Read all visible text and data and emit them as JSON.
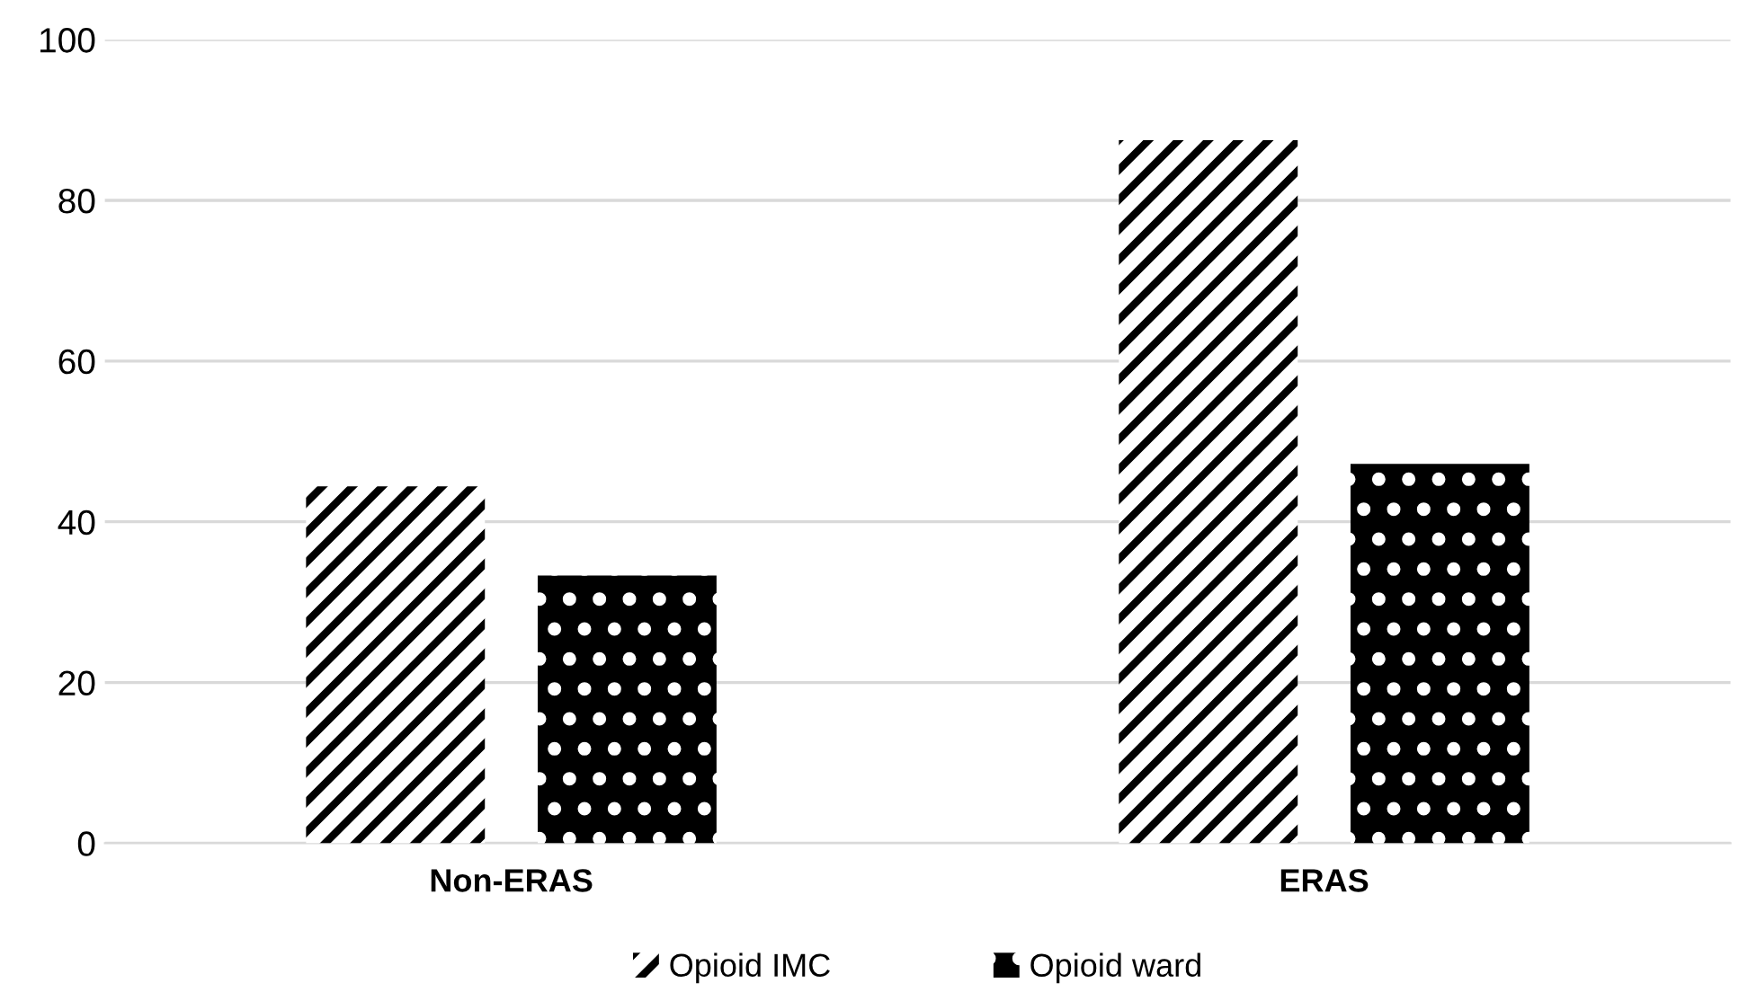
{
  "chart_data": {
    "type": "bar",
    "categories": [
      "Non-ERAS",
      "ERAS"
    ],
    "series": [
      {
        "name": "Opioid IMC",
        "color": "#ffffff",
        "values": [
          44.4,
          87.5
        ]
      },
      {
        "name": "Opioid ward",
        "color": "#000000",
        "values": [
          33.3,
          47.2
        ]
      }
    ],
    "ylim": [
      0,
      100
    ],
    "yticks": [
      0,
      20,
      40,
      60,
      80,
      100
    ],
    "grid": "y",
    "legend": "bottom"
  }
}
